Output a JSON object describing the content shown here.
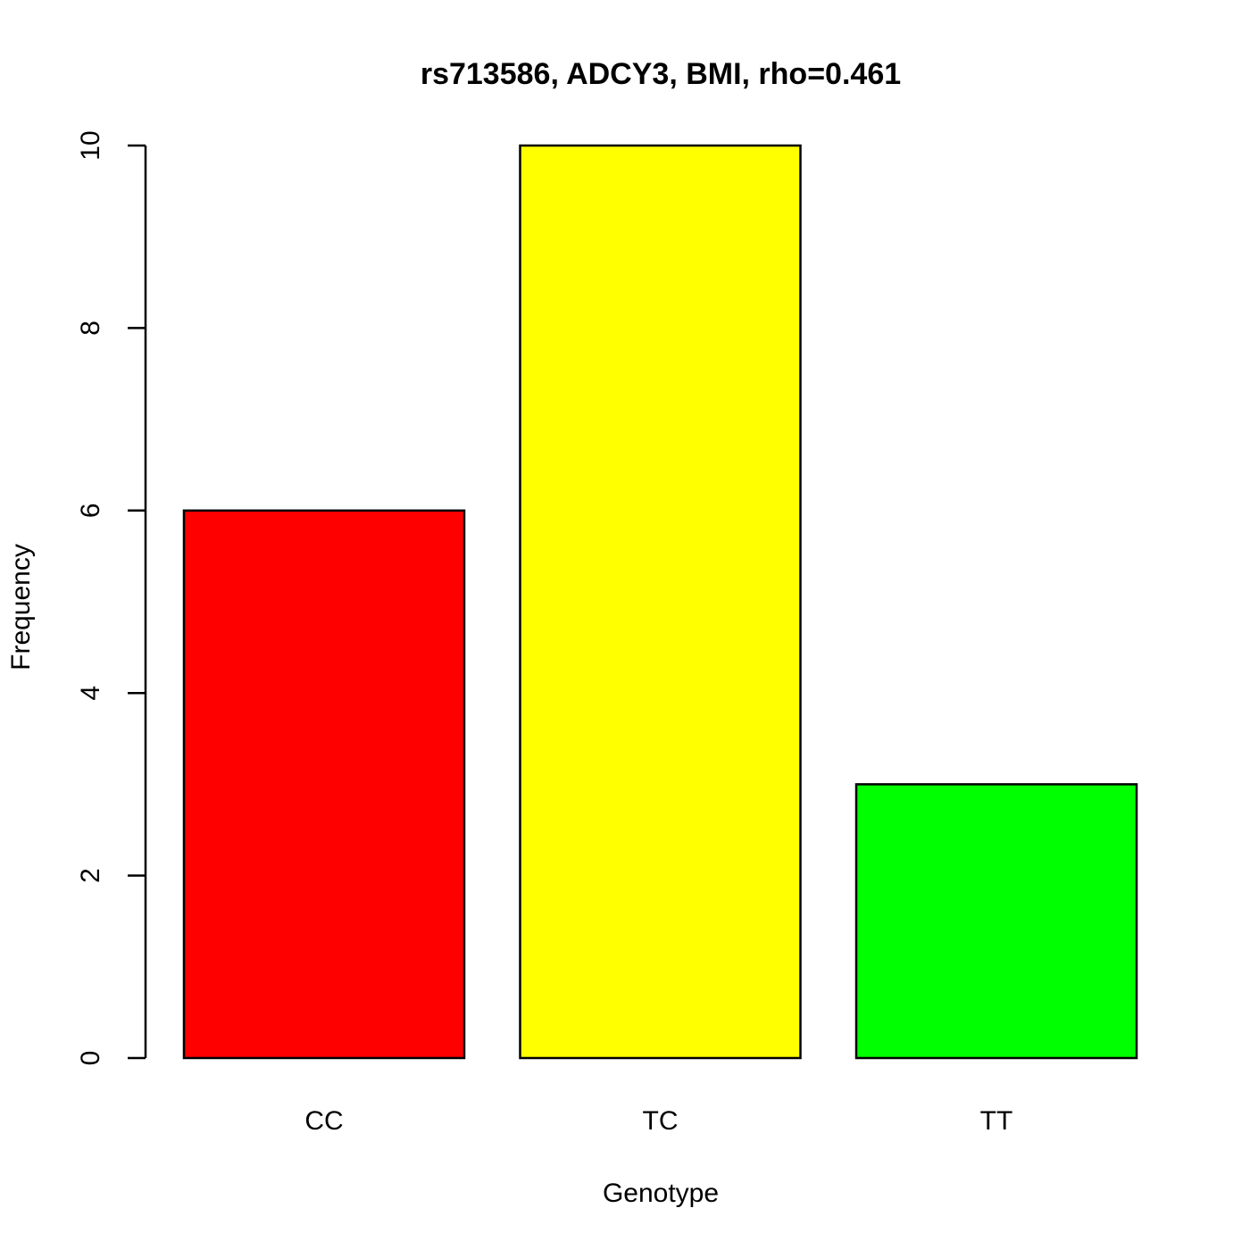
{
  "chart_data": {
    "type": "bar",
    "title": "rs713586, ADCY3, BMI, rho=0.461",
    "x_label": "Genotype",
    "y_label": "Frequency",
    "categories": [
      "CC",
      "TC",
      "TT"
    ],
    "values": [
      6,
      10,
      3
    ],
    "colors": [
      "#ff0000",
      "#ffff00",
      "#00ff00"
    ],
    "ylim": [
      0,
      10
    ],
    "yticks": [
      0,
      2,
      4,
      6,
      8,
      10
    ],
    "grid": false
  }
}
